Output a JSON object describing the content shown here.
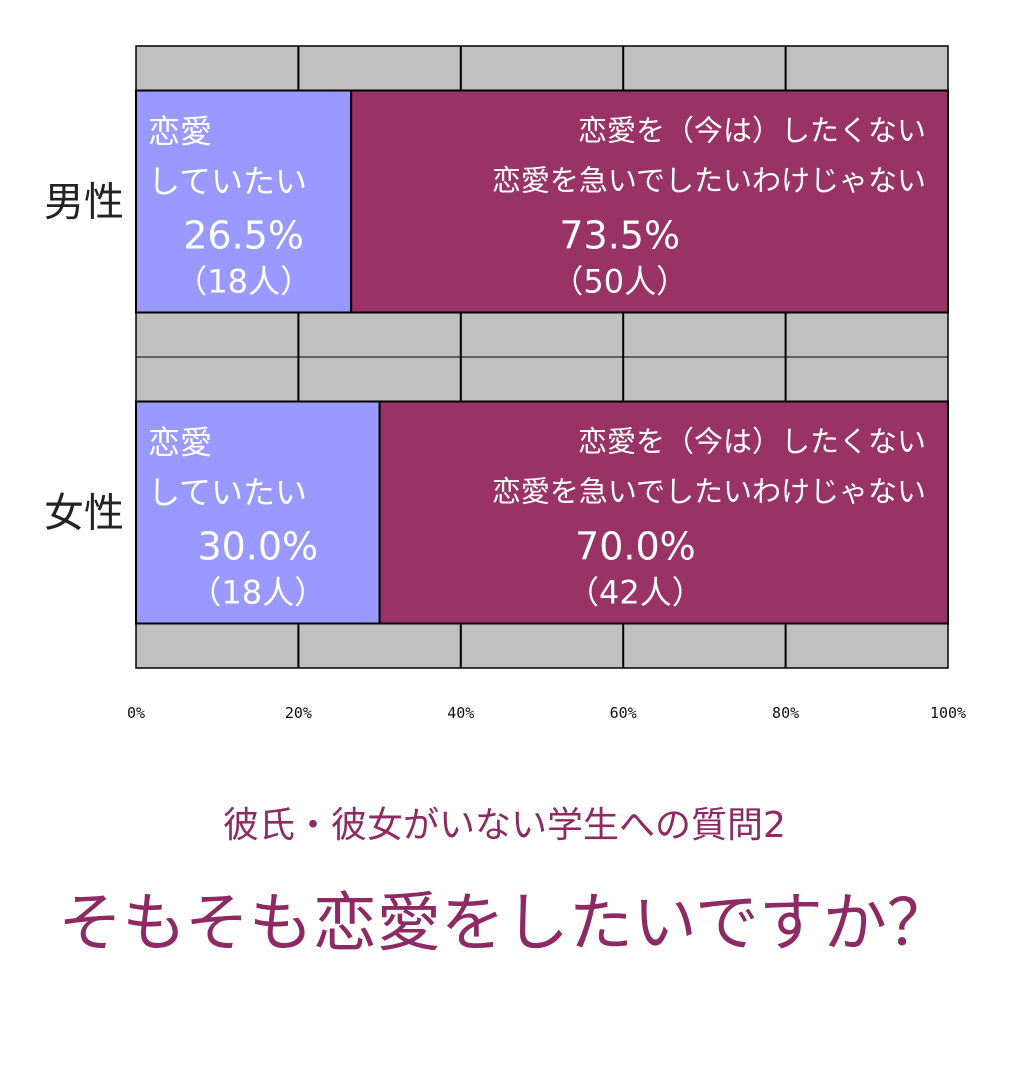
{
  "chart_data": {
    "type": "bar",
    "orientation": "horizontal",
    "stacked": "100%",
    "categories": [
      "男性",
      "女性"
    ],
    "series": [
      {
        "name": "恋愛していたい",
        "label_lines": [
          "恋愛",
          "していたい"
        ],
        "color": "#9999ff",
        "values": [
          26.5,
          30.0
        ],
        "value_labels": [
          "26.5%",
          "30.0%"
        ],
        "count_labels": [
          "（18人）",
          "（18人）"
        ]
      },
      {
        "name": "恋愛を（今は）したくない 恋愛を急いでしたいわけじゃない",
        "label_lines": [
          "恋愛を（今は）したくない",
          "恋愛を急いでしたいわけじゃない"
        ],
        "color": "#993366",
        "values": [
          73.5,
          70.0
        ],
        "value_labels": [
          "73.5%",
          "70.0%"
        ],
        "count_labels": [
          "（50人）",
          "（42人）"
        ]
      }
    ],
    "xlim": [
      0,
      100
    ],
    "x_ticks": [
      "0%",
      "20%",
      "40%",
      "60%",
      "80%",
      "100%"
    ],
    "plot_background": "#c0c0c0",
    "grid": true,
    "legend": "none"
  },
  "subtitle": "彼氏・彼女がいない学生への質問2",
  "title": "そもそも恋愛をしたいですか？"
}
